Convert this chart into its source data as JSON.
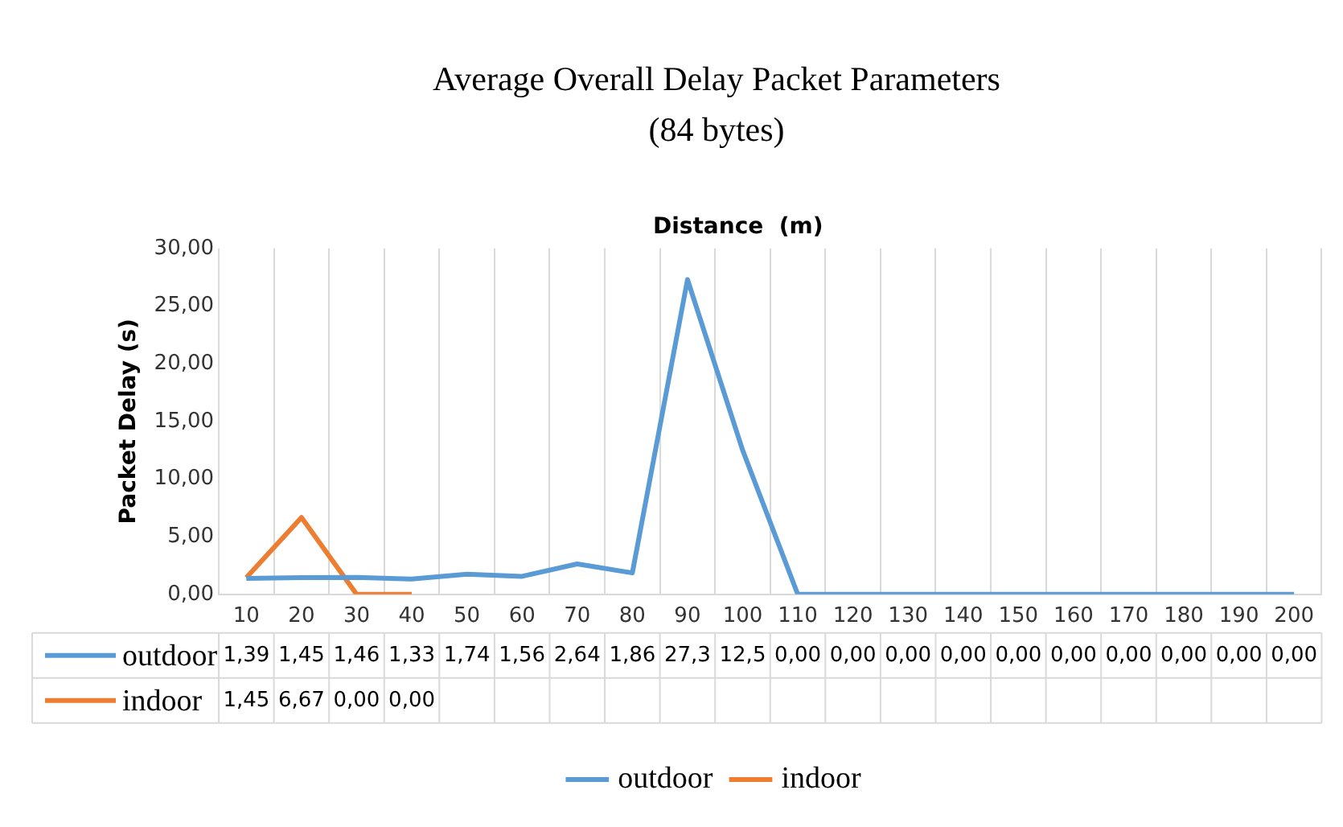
{
  "chart_data": {
    "type": "line",
    "title": "Average Overall Delay Packet Parameters",
    "subtitle": "(84 bytes)",
    "xlabel": "Distance  (m)",
    "ylabel": "Packet Delay (s)",
    "categories": [
      "10",
      "20",
      "30",
      "40",
      "50",
      "60",
      "70",
      "80",
      "90",
      "100",
      "110",
      "120",
      "130",
      "140",
      "150",
      "160",
      "170",
      "180",
      "190",
      "200"
    ],
    "series": [
      {
        "name": "outdoor",
        "color": "#5b9bd5",
        "values": [
          1.39,
          1.45,
          1.46,
          1.33,
          1.74,
          1.56,
          2.64,
          1.86,
          27.3,
          12.5,
          0,
          0,
          0,
          0,
          0,
          0,
          0,
          0,
          0,
          0
        ],
        "value_labels": [
          "1,39",
          "1,45",
          "1,46",
          "1,33",
          "1,74",
          "1,56",
          "2,64",
          "1,86",
          "27,3",
          "12,5",
          "0,00",
          "0,00",
          "0,00",
          "0,00",
          "0,00",
          "0,00",
          "0,00",
          "0,00",
          "0,00",
          "0,00"
        ]
      },
      {
        "name": "indoor",
        "color": "#ed7d31",
        "values": [
          1.45,
          6.67,
          0,
          0,
          null,
          null,
          null,
          null,
          null,
          null,
          null,
          null,
          null,
          null,
          null,
          null,
          null,
          null,
          null,
          null
        ],
        "value_labels": [
          "1,45",
          "6,67",
          "0,00",
          "0,00",
          null,
          null,
          null,
          null,
          null,
          null,
          null,
          null,
          null,
          null,
          null,
          null,
          null,
          null,
          null,
          null
        ]
      }
    ],
    "ylim": [
      0,
      30
    ],
    "yticks": [
      {
        "value": 0,
        "label": "0,00"
      },
      {
        "value": 5,
        "label": "5,00"
      },
      {
        "value": 10,
        "label": "10,00"
      },
      {
        "value": 15,
        "label": "15,00"
      },
      {
        "value": 20,
        "label": "20,00"
      },
      {
        "value": 25,
        "label": "25,00"
      },
      {
        "value": 30,
        "label": "30,00"
      }
    ],
    "grid": "x",
    "legend": "bottom",
    "marker": "none",
    "line_style": "solid"
  }
}
